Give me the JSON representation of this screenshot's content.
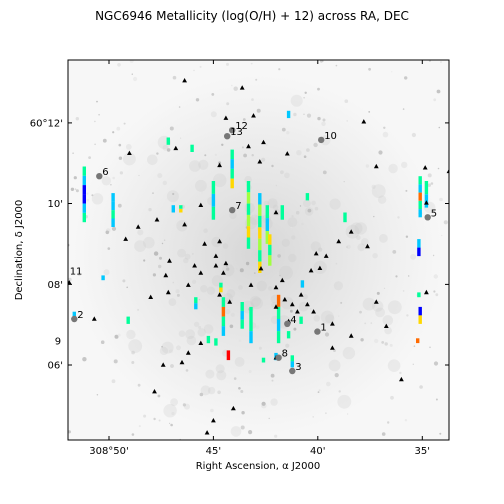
{
  "chart_data": {
    "type": "scatter",
    "title": "NGC6946 Metallicity (log(O/H) + 12) across RA, DEC",
    "xlabel": "Right Ascension, α J2000",
    "ylabel": "Declination, δ J2000",
    "xlim": [
      308.866,
      308.562
    ],
    "ylim": [
      60.069,
      60.226
    ],
    "x_ticks": [
      {
        "value": 308.8333,
        "label": "308°50'"
      },
      {
        "value": 308.75,
        "label": "45'"
      },
      {
        "value": 308.6667,
        "label": "40'"
      },
      {
        "value": 308.5833,
        "label": "35'"
      }
    ],
    "y_ticks": [
      {
        "value": 60.2,
        "label": "60°12'"
      },
      {
        "value": 60.1667,
        "label": "10'"
      },
      {
        "value": 60.1333,
        "label": "08'"
      },
      {
        "value": 60.1,
        "label": "06'"
      }
    ],
    "colormap": [
      "#0000ff",
      "#00c8ff",
      "#00ff9a",
      "#a0ff40",
      "#ffd800",
      "#ff6a00",
      "#ff0000"
    ],
    "annotations": [
      {
        "text": "1",
        "x": 308.667,
        "y": 60.1138
      },
      {
        "text": "2",
        "x": 308.861,
        "y": 60.119
      },
      {
        "text": "3",
        "x": 308.687,
        "y": 60.0975
      },
      {
        "text": "4",
        "x": 308.691,
        "y": 60.117
      },
      {
        "text": "5",
        "x": 308.579,
        "y": 60.161
      },
      {
        "text": "6",
        "x": 308.841,
        "y": 60.178
      },
      {
        "text": "7",
        "x": 308.735,
        "y": 60.164
      },
      {
        "text": "8",
        "x": 308.698,
        "y": 60.103
      },
      {
        "text": "9",
        "x": 308.879,
        "y": 60.108
      },
      {
        "text": "10",
        "x": 308.664,
        "y": 60.193
      },
      {
        "text": "11",
        "x": 308.867,
        "y": 60.137
      },
      {
        "text": "12",
        "x": 308.735,
        "y": 60.197
      },
      {
        "text": "13",
        "x": 308.739,
        "y": 60.1945
      }
    ],
    "triangle_points": [
      [
        308.773,
        60.2175
      ],
      [
        308.727,
        60.2145
      ],
      [
        308.74,
        60.202
      ],
      [
        308.718,
        60.203
      ],
      [
        308.71,
        60.192
      ],
      [
        308.63,
        60.2005
      ],
      [
        308.691,
        60.1873
      ],
      [
        308.722,
        60.1903
      ],
      [
        308.817,
        60.1875
      ],
      [
        308.78,
        60.1895
      ],
      [
        308.62,
        60.182
      ],
      [
        308.713,
        60.184
      ],
      [
        308.745,
        60.1825
      ],
      [
        308.76,
        60.166
      ],
      [
        308.7,
        60.163
      ],
      [
        308.581,
        60.1815
      ],
      [
        308.562,
        60.18
      ],
      [
        308.76,
        60.138
      ],
      [
        308.795,
        60.16
      ],
      [
        308.785,
        60.143
      ],
      [
        308.773,
        60.158
      ],
      [
        308.81,
        60.157
      ],
      [
        308.757,
        60.15
      ],
      [
        308.765,
        60.141
      ],
      [
        308.748,
        60.145
      ],
      [
        308.745,
        60.151
      ],
      [
        308.748,
        60.141
      ],
      [
        308.742,
        60.138
      ],
      [
        308.74,
        60.142
      ],
      [
        308.712,
        60.1398
      ],
      [
        308.7,
        60.132
      ],
      [
        308.695,
        60.135
      ],
      [
        308.687,
        60.125
      ],
      [
        308.68,
        60.129
      ],
      [
        308.675,
        60.125
      ],
      [
        308.668,
        60.146
      ],
      [
        308.66,
        60.145
      ],
      [
        308.665,
        60.14
      ],
      [
        308.672,
        60.139
      ],
      [
        308.65,
        60.151
      ],
      [
        308.64,
        60.155
      ],
      [
        308.627,
        60.149
      ],
      [
        308.82,
        60.152
      ],
      [
        308.788,
        60.137
      ],
      [
        308.786,
        60.13
      ],
      [
        308.77,
        60.133
      ],
      [
        308.8,
        60.128
      ],
      [
        308.865,
        60.134
      ],
      [
        308.845,
        60.119
      ],
      [
        308.745,
        60.129
      ],
      [
        308.737,
        60.126
      ],
      [
        308.72,
        60.133
      ],
      [
        308.7,
        60.124
      ],
      [
        308.693,
        60.127
      ],
      [
        308.683,
        60.122
      ],
      [
        308.69,
        60.118
      ],
      [
        308.67,
        60.122
      ],
      [
        308.655,
        60.117
      ],
      [
        308.64,
        60.112
      ],
      [
        308.62,
        60.126
      ],
      [
        308.612,
        60.116
      ],
      [
        308.58,
        60.13
      ],
      [
        308.76,
        60.109
      ],
      [
        308.77,
        60.105
      ],
      [
        308.775,
        60.101
      ],
      [
        308.79,
        60.1
      ],
      [
        308.797,
        60.089
      ],
      [
        308.75,
        60.077
      ],
      [
        308.755,
        60.072
      ],
      [
        308.734,
        60.082
      ],
      [
        308.6,
        60.094
      ],
      [
        308.655,
        60.107
      ],
      [
        308.7,
        60.103
      ],
      [
        308.58,
        60.167
      ]
    ],
    "metallicity_strips": [
      {
        "x": 308.853,
        "y0": 60.159,
        "y1": 60.182,
        "colors": [
          "#00ff9a",
          "#00c8ff",
          "#0000ff",
          "#0000ff",
          "#00c8ff",
          "#00ff9a"
        ]
      },
      {
        "x": 308.83,
        "y0": 60.157,
        "y1": 60.171,
        "colors": [
          "#00c8ff",
          "#00c8ff",
          "#00ff9a",
          "#00c8ff"
        ]
      },
      {
        "x": 308.767,
        "y0": 60.188,
        "y1": 60.191,
        "colors": [
          "#00ff9a"
        ]
      },
      {
        "x": 308.735,
        "y0": 60.173,
        "y1": 60.189,
        "colors": [
          "#00ff9a",
          "#00c8ff",
          "#00ff9a",
          "#ffd800"
        ]
      },
      {
        "x": 308.75,
        "y0": 60.16,
        "y1": 60.176,
        "colors": [
          "#00ff9a",
          "#00c8ff",
          "#00ff9a"
        ]
      },
      {
        "x": 308.722,
        "y0": 60.148,
        "y1": 60.176,
        "colors": [
          "#00ff9a",
          "#a0ff40",
          "#00ff9a",
          "#a0ff40",
          "#ffd800",
          "#00ff9a"
        ]
      },
      {
        "x": 308.713,
        "y0": 60.138,
        "y1": 60.171,
        "colors": [
          "#00c8ff",
          "#a0ff40",
          "#00ff9a",
          "#ffd800",
          "#a0ff40",
          "#00ff9a",
          "#ffd800"
        ]
      },
      {
        "x": 308.707,
        "y0": 60.15,
        "y1": 60.166,
        "colors": [
          "#00ff9a",
          "#00c8ff",
          "#a0ff40"
        ]
      },
      {
        "x": 308.705,
        "y0": 60.141,
        "y1": 60.154,
        "colors": [
          "#ffd800",
          "#00ff9a",
          "#a0ff40"
        ]
      },
      {
        "x": 308.742,
        "y0": 60.112,
        "y1": 60.128,
        "colors": [
          "#00ff9a",
          "#ff6a00",
          "#00ff9a",
          "#00c8ff"
        ]
      },
      {
        "x": 308.727,
        "y0": 60.115,
        "y1": 60.126,
        "colors": [
          "#00ff9a",
          "#00c8ff",
          "#00ff9a"
        ]
      },
      {
        "x": 308.72,
        "y0": 60.109,
        "y1": 60.124,
        "colors": [
          "#00ff9a",
          "#00ff9a",
          "#00c8ff"
        ]
      },
      {
        "x": 308.698,
        "y0": 60.109,
        "y1": 60.129,
        "colors": [
          "#ff6a00",
          "#00ff9a",
          "#00c8ff",
          "#00ff9a"
        ]
      },
      {
        "x": 308.68,
        "y0": 60.117,
        "y1": 60.12,
        "colors": [
          "#00ff9a"
        ]
      },
      {
        "x": 308.687,
        "y0": 60.099,
        "y1": 60.104,
        "colors": [
          "#00ff9a",
          "#00c8ff"
        ]
      },
      {
        "x": 308.71,
        "y0": 60.101,
        "y1": 60.103,
        "colors": [
          "#00ff9a"
        ]
      },
      {
        "x": 308.7,
        "y0": 60.102,
        "y1": 60.105,
        "colors": [
          "#00c8ff"
        ]
      },
      {
        "x": 308.738,
        "y0": 60.102,
        "y1": 60.106,
        "colors": [
          "#ff0000"
        ]
      },
      {
        "x": 308.69,
        "y0": 60.111,
        "y1": 60.114,
        "colors": [
          "#00ff9a"
        ]
      },
      {
        "x": 308.748,
        "y0": 60.108,
        "y1": 60.111,
        "colors": [
          "#00ff9a"
        ]
      },
      {
        "x": 308.585,
        "y0": 60.161,
        "y1": 60.178,
        "colors": [
          "#00ff9a",
          "#00c8ff",
          "#ff6a00",
          "#00ff9a",
          "#00c8ff"
        ]
      },
      {
        "x": 308.58,
        "y0": 60.165,
        "y1": 60.176,
        "colors": [
          "#00ff9a",
          "#00c8ff"
        ]
      },
      {
        "x": 308.586,
        "y0": 60.145,
        "y1": 60.152,
        "colors": [
          "#00c8ff",
          "#0000ff"
        ]
      },
      {
        "x": 308.585,
        "y0": 60.117,
        "y1": 60.124,
        "colors": [
          "#0000ff",
          "#ffd800"
        ]
      },
      {
        "x": 308.587,
        "y0": 60.109,
        "y1": 60.111,
        "colors": [
          "#ff6a00"
        ]
      },
      {
        "x": 308.586,
        "y0": 60.128,
        "y1": 60.13,
        "colors": [
          "#00ff9a"
        ]
      },
      {
        "x": 308.69,
        "y0": 60.202,
        "y1": 60.205,
        "colors": [
          "#00c8ff"
        ]
      },
      {
        "x": 308.786,
        "y0": 60.191,
        "y1": 60.194,
        "colors": [
          "#00ff9a"
        ]
      },
      {
        "x": 308.776,
        "y0": 60.163,
        "y1": 60.166,
        "colors": [
          "#00ff9a",
          "#ffd800"
        ]
      },
      {
        "x": 308.782,
        "y0": 60.163,
        "y1": 60.166,
        "colors": [
          "#00c8ff"
        ]
      },
      {
        "x": 308.695,
        "y0": 60.16,
        "y1": 60.166,
        "colors": [
          "#00ff9a"
        ]
      },
      {
        "x": 308.675,
        "y0": 60.168,
        "y1": 60.171,
        "colors": [
          "#00ff9a"
        ]
      },
      {
        "x": 308.645,
        "y0": 60.159,
        "y1": 60.163,
        "colors": [
          "#00ff9a"
        ]
      },
      {
        "x": 308.818,
        "y0": 60.117,
        "y1": 60.12,
        "colors": [
          "#00ff9a"
        ]
      },
      {
        "x": 308.861,
        "y0": 60.119,
        "y1": 60.122,
        "colors": [
          "#00c8ff"
        ]
      },
      {
        "x": 308.679,
        "y0": 60.132,
        "y1": 60.135,
        "colors": [
          "#00c8ff"
        ]
      },
      {
        "x": 308.754,
        "y0": 60.109,
        "y1": 60.112,
        "colors": [
          "#00ff9a"
        ]
      },
      {
        "x": 308.838,
        "y0": 60.135,
        "y1": 60.137,
        "colors": [
          "#00c8ff"
        ]
      },
      {
        "x": 308.764,
        "y0": 60.123,
        "y1": 60.128,
        "colors": [
          "#00ff9a",
          "#00c8ff"
        ]
      },
      {
        "x": 308.744,
        "y0": 60.13,
        "y1": 60.134,
        "colors": [
          "#00ff9a",
          "#ffd800"
        ]
      }
    ]
  }
}
